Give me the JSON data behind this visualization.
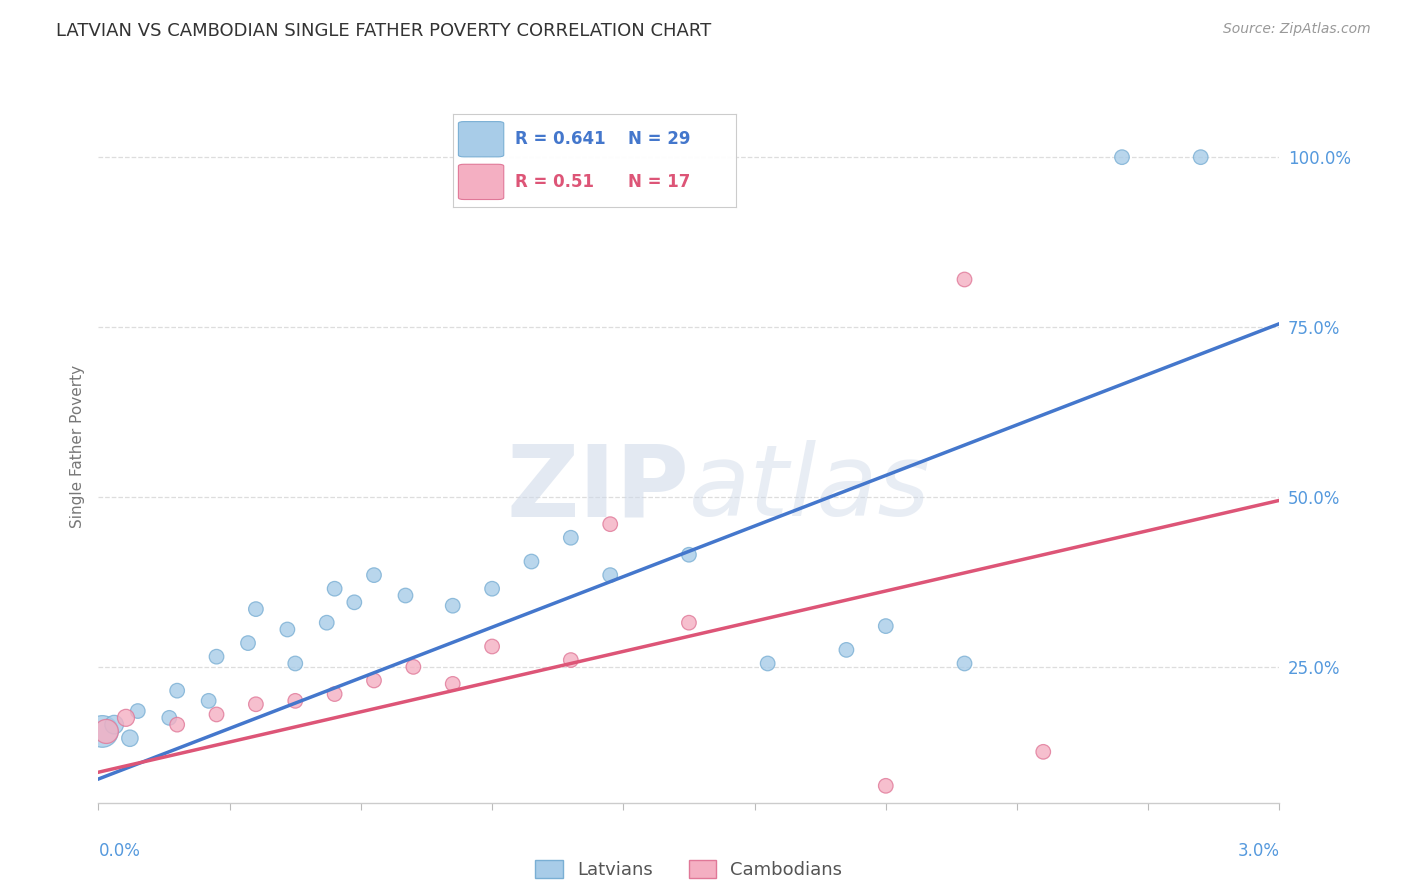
{
  "title": "LATVIAN VS CAMBODIAN SINGLE FATHER POVERTY CORRELATION CHART",
  "source": "Source: ZipAtlas.com",
  "ylabel": "Single Father Poverty",
  "ytick_labels": [
    "100.0%",
    "75.0%",
    "50.0%",
    "25.0%"
  ],
  "ytick_values": [
    1.0,
    0.75,
    0.5,
    0.25
  ],
  "xrange": [
    0.0,
    0.03
  ],
  "yrange": [
    0.05,
    1.1
  ],
  "latvian_R": 0.641,
  "latvian_N": 29,
  "cambodian_R": 0.51,
  "cambodian_N": 17,
  "latvian_color": "#a8cce8",
  "latvian_edge_color": "#7aafd4",
  "cambodian_color": "#f4afc2",
  "cambodian_edge_color": "#e07898",
  "blue_line_color": "#4477cc",
  "pink_line_color": "#dd5577",
  "latvian_dots": [
    [
      0.0001,
      0.155
    ],
    [
      0.0004,
      0.165
    ],
    [
      0.0008,
      0.145
    ],
    [
      0.001,
      0.185
    ],
    [
      0.0018,
      0.175
    ],
    [
      0.002,
      0.215
    ],
    [
      0.0028,
      0.2
    ],
    [
      0.003,
      0.265
    ],
    [
      0.0038,
      0.285
    ],
    [
      0.004,
      0.335
    ],
    [
      0.0048,
      0.305
    ],
    [
      0.005,
      0.255
    ],
    [
      0.0058,
      0.315
    ],
    [
      0.006,
      0.365
    ],
    [
      0.0065,
      0.345
    ],
    [
      0.007,
      0.385
    ],
    [
      0.0078,
      0.355
    ],
    [
      0.009,
      0.34
    ],
    [
      0.01,
      0.365
    ],
    [
      0.011,
      0.405
    ],
    [
      0.012,
      0.44
    ],
    [
      0.013,
      0.385
    ],
    [
      0.015,
      0.415
    ],
    [
      0.017,
      0.255
    ],
    [
      0.019,
      0.275
    ],
    [
      0.02,
      0.31
    ],
    [
      0.022,
      0.255
    ],
    [
      0.026,
      1.0
    ],
    [
      0.028,
      1.0
    ]
  ],
  "cambodian_dots": [
    [
      0.0002,
      0.155
    ],
    [
      0.0007,
      0.175
    ],
    [
      0.002,
      0.165
    ],
    [
      0.003,
      0.18
    ],
    [
      0.004,
      0.195
    ],
    [
      0.005,
      0.2
    ],
    [
      0.006,
      0.21
    ],
    [
      0.007,
      0.23
    ],
    [
      0.008,
      0.25
    ],
    [
      0.009,
      0.225
    ],
    [
      0.01,
      0.28
    ],
    [
      0.012,
      0.26
    ],
    [
      0.013,
      0.46
    ],
    [
      0.015,
      0.315
    ],
    [
      0.02,
      0.075
    ],
    [
      0.024,
      0.125
    ],
    [
      0.022,
      0.82
    ]
  ],
  "latvian_line_x": [
    0.0,
    0.03
  ],
  "latvian_line_y": [
    0.085,
    0.755
  ],
  "cambodian_line_x": [
    0.0,
    0.03
  ],
  "cambodian_line_y": [
    0.095,
    0.495
  ],
  "watermark_zip": "ZIP",
  "watermark_atlas": "atlas",
  "background_color": "#ffffff",
  "grid_color": "#dddddd",
  "title_color": "#333333",
  "axis_label_color": "#777777",
  "tick_label_color": "#5599dd",
  "legend_label_latvians": "Latvians",
  "legend_label_cambodians": "Cambodians"
}
